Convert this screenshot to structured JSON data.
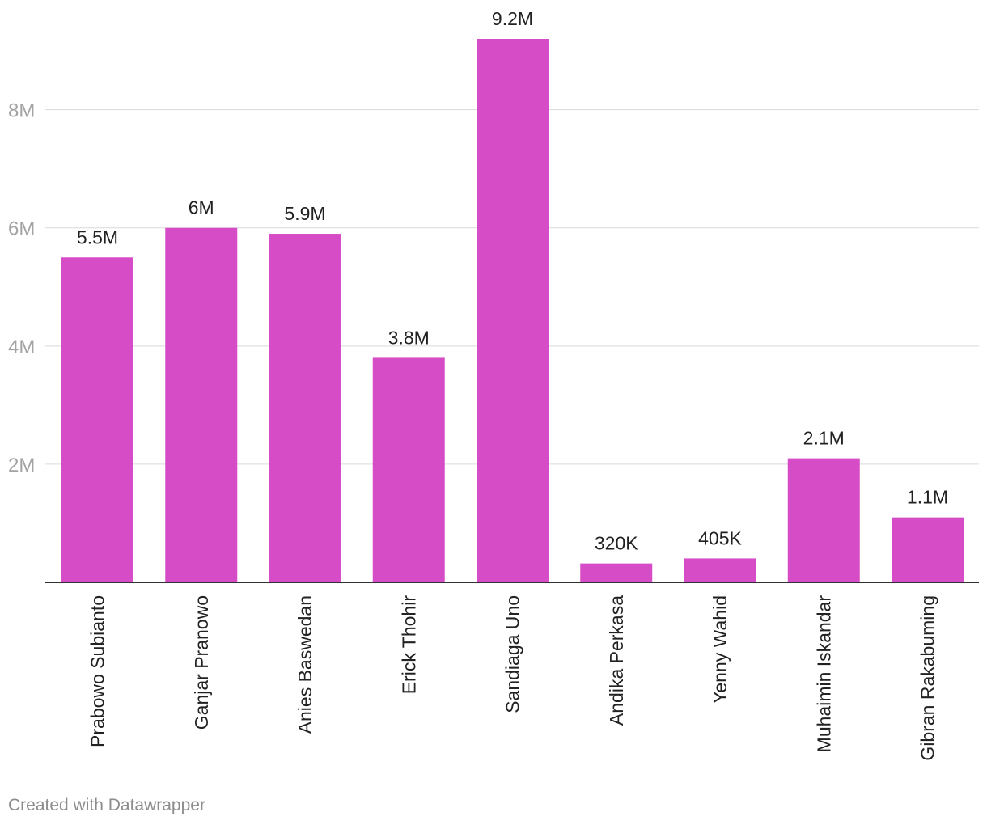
{
  "chart_data": {
    "type": "bar",
    "title": "",
    "xlabel": "",
    "ylabel": "",
    "categories": [
      "Prabowo Subianto",
      "Ganjar Pranowo",
      "Anies Baswedan",
      "Erick Thohir",
      "Sandiaga Uno",
      "Andika Perkasa",
      "Yenny Wahid",
      "Muhaimin Iskandar",
      "Gibran Rakabuming"
    ],
    "values": [
      5500000,
      6000000,
      5900000,
      3800000,
      9200000,
      320000,
      405000,
      2100000,
      1100000
    ],
    "value_labels": [
      "5.5M",
      "6M",
      "5.9M",
      "3.8M",
      "9.2M",
      "320K",
      "405K",
      "2.1M",
      "1.1M"
    ],
    "yticks": [
      2000000,
      4000000,
      6000000,
      8000000
    ],
    "ytick_labels": [
      "2M",
      "4M",
      "6M",
      "8M"
    ],
    "ylim": [
      0,
      9200000
    ],
    "grid": true,
    "legend": "none",
    "bar_color": "#d64bc6"
  },
  "footer": {
    "credit": "Created with Datawrapper"
  }
}
